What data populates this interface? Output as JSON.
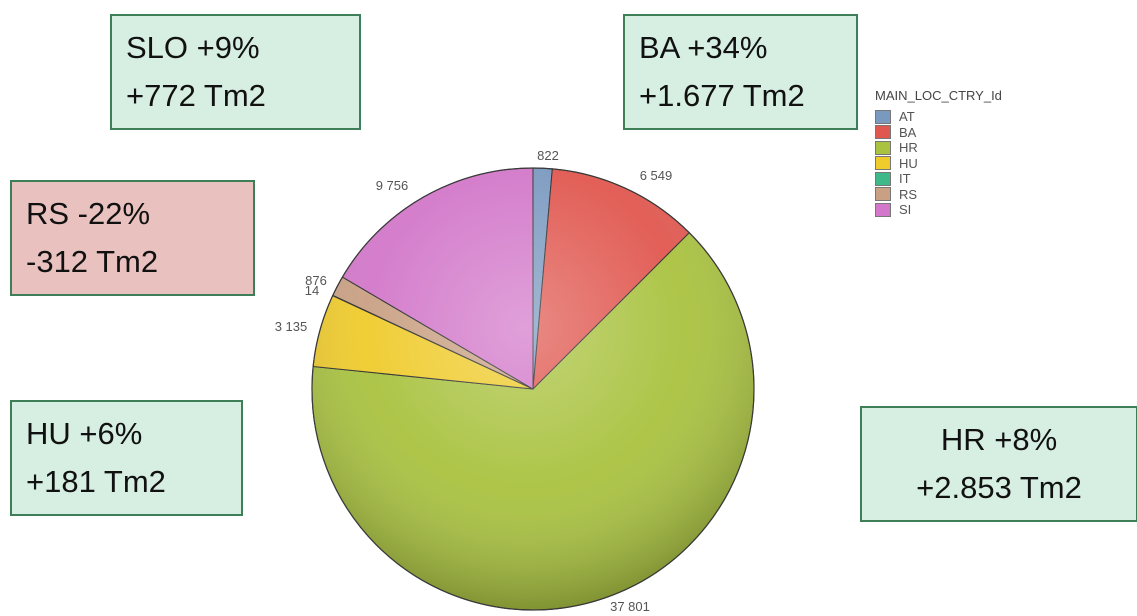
{
  "callouts": {
    "slo": {
      "line1": "SLO +9%",
      "line2": "+772 Tm2"
    },
    "ba": {
      "line1": "BA +34%",
      "line2": "+1.677 Tm2"
    },
    "rs": {
      "line1": "RS -22%",
      "line2": "-312 Tm2"
    },
    "hu": {
      "line1": "HU +6%",
      "line2": "+181 Tm2"
    },
    "hr": {
      "line1": "HR +8%",
      "line2": "+2.853 Tm2"
    }
  },
  "colors": {
    "positive_box": "#d6efe2",
    "negative_box": "#e9c2c0",
    "box_border": "#3f7f57"
  },
  "chart_data": {
    "type": "pie",
    "legend_title": "MAIN_LOC_CTRY_Id",
    "legend_position": "top-right",
    "start": "12 o'clock",
    "direction": "clockwise",
    "slices": [
      {
        "label": "AT",
        "value": 822,
        "display": "822",
        "color": "#7a99bf"
      },
      {
        "label": "BA",
        "value": 6549,
        "display": "6 549",
        "color": "#e0574f"
      },
      {
        "label": "HR",
        "value": 37801,
        "display": "37 801",
        "color": "#a9c23f"
      },
      {
        "label": "HU",
        "value": 3135,
        "display": "3 135",
        "color": "#efcb2c"
      },
      {
        "label": "IT",
        "value": 14,
        "display": "14",
        "color": "#3fb98a"
      },
      {
        "label": "RS",
        "value": 876,
        "display": "876",
        "color": "#c9a083"
      },
      {
        "label": "SI",
        "value": 9756,
        "display": "9 756",
        "color": "#d277c9"
      }
    ]
  }
}
